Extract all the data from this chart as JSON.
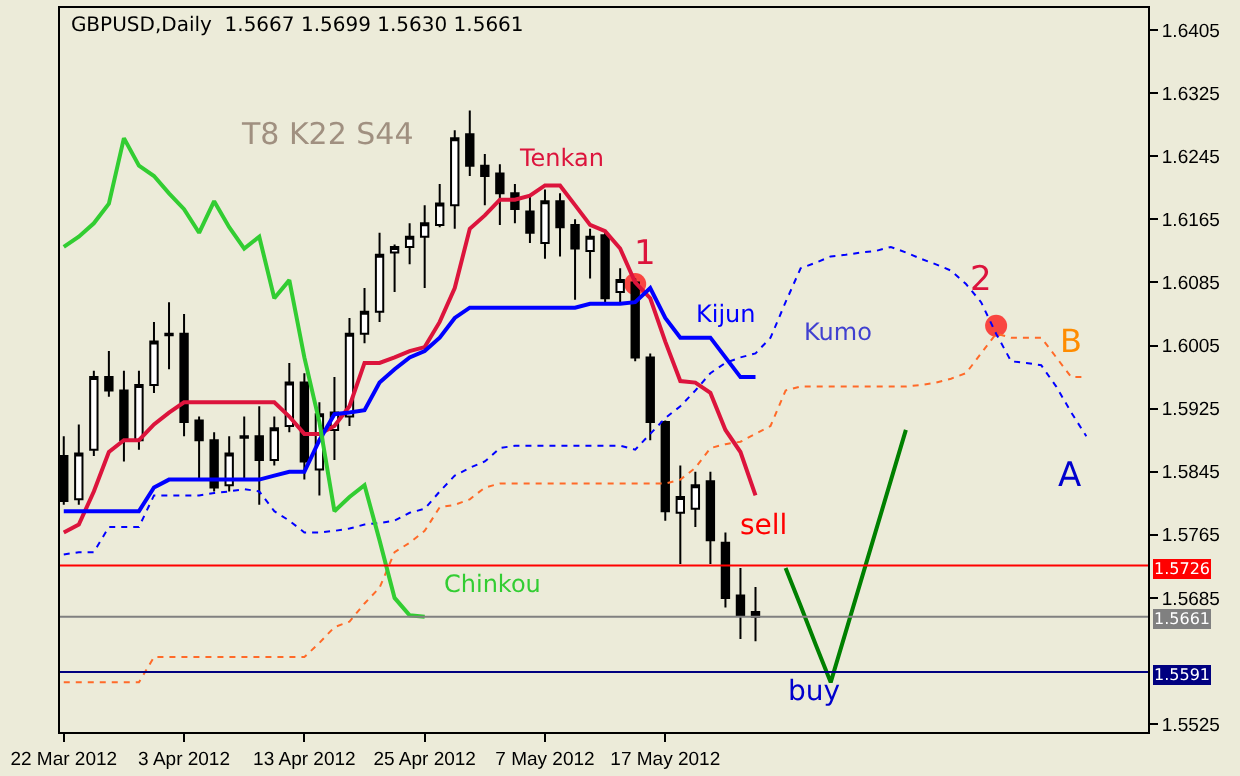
{
  "chart_data": {
    "type": "candlestick",
    "title": "GBPUSD,Daily  1.5667 1.5699 1.5630 1.5661",
    "categories": [
      "22 Mar 2012",
      null,
      null,
      null,
      null,
      null,
      null,
      null,
      "3 Apr 2012",
      null,
      null,
      null,
      null,
      null,
      null,
      null,
      "13 Apr 2012",
      null,
      null,
      null,
      null,
      null,
      null,
      null,
      "25 Apr 2012",
      null,
      null,
      null,
      null,
      null,
      null,
      null,
      "7 May 2012",
      null,
      null,
      null,
      null,
      null,
      null,
      null,
      "17 May 2012",
      null,
      null,
      null,
      null,
      null,
      null,
      null,
      null,
      null,
      null,
      null,
      null,
      null,
      null,
      null,
      null,
      null,
      null,
      null,
      null,
      null,
      null,
      null,
      null,
      null,
      null,
      null,
      null
    ],
    "ohlc": [
      [
        1.5865,
        1.589,
        1.5803,
        1.5808
      ],
      [
        1.581,
        1.5905,
        1.5803,
        1.5868
      ],
      [
        1.5873,
        1.5973,
        1.5865,
        1.5965
      ],
      [
        1.5965,
        1.5998,
        1.594,
        1.5948
      ],
      [
        1.5948,
        1.5973,
        1.5858,
        1.5885
      ],
      [
        1.5885,
        1.5973,
        1.5873,
        1.5955
      ],
      [
        1.5955,
        1.6035,
        1.5945,
        1.601
      ],
      [
        1.6018,
        1.606,
        1.5975,
        1.602
      ],
      [
        1.602,
        1.6045,
        1.589,
        1.5908
      ],
      [
        1.591,
        1.5915,
        1.5835,
        1.5885
      ],
      [
        1.5885,
        1.5895,
        1.582,
        1.5825
      ],
      [
        1.5828,
        1.589,
        1.582,
        1.5868
      ],
      [
        1.5888,
        1.5915,
        1.5835,
        1.589
      ],
      [
        1.589,
        1.5928,
        1.5803,
        1.586
      ],
      [
        1.586,
        1.5915,
        1.5853,
        1.59
      ],
      [
        1.5903,
        1.5983,
        1.5895,
        1.5958
      ],
      [
        1.5958,
        1.597,
        1.5835,
        1.5858
      ],
      [
        1.5848,
        1.5933,
        1.5815,
        1.5918
      ],
      [
        1.5898,
        1.5965,
        1.586,
        1.592
      ],
      [
        1.5915,
        1.604,
        1.5903,
        1.602
      ],
      [
        1.602,
        1.6078,
        1.6008,
        1.6048
      ],
      [
        1.6048,
        1.6148,
        1.6035,
        1.612
      ],
      [
        1.6123,
        1.6133,
        1.6073,
        1.613
      ],
      [
        1.613,
        1.616,
        1.6108,
        1.6143
      ],
      [
        1.6143,
        1.6183,
        1.6078,
        1.616
      ],
      [
        1.6158,
        1.621,
        1.6155,
        1.6185
      ],
      [
        1.6183,
        1.6278,
        1.6153,
        1.6268
      ],
      [
        1.6273,
        1.6303,
        1.622,
        1.6233
      ],
      [
        1.6233,
        1.6248,
        1.6183,
        1.622
      ],
      [
        1.6223,
        1.6235,
        1.6158,
        1.6198
      ],
      [
        1.6198,
        1.621,
        1.616,
        1.6178
      ],
      [
        1.6175,
        1.6195,
        1.6135,
        1.6148
      ],
      [
        1.6135,
        1.6203,
        1.6115,
        1.6188
      ],
      [
        1.6188,
        1.6198,
        1.6118,
        1.6155
      ],
      [
        1.6158,
        1.6165,
        1.6063,
        1.6128
      ],
      [
        1.6125,
        1.6153,
        1.609,
        1.6143
      ],
      [
        1.6145,
        1.6148,
        1.606,
        1.6065
      ],
      [
        1.6073,
        1.6103,
        1.606,
        1.6088
      ],
      [
        1.6085,
        1.609,
        1.5985,
        1.599
      ],
      [
        1.599,
        1.5995,
        1.5885,
        1.5908
      ],
      [
        1.5908,
        1.591,
        1.5783,
        1.5795
      ],
      [
        1.5793,
        1.5853,
        1.5728,
        1.5813
      ],
      [
        1.5798,
        1.5845,
        1.5775,
        1.5828
      ],
      [
        1.5833,
        1.5845,
        1.5728,
        1.5758
      ],
      [
        1.5755,
        1.5768,
        1.5673,
        1.5685
      ],
      [
        1.5688,
        1.5723,
        1.5633,
        1.5663
      ],
      [
        1.5667,
        1.5699,
        1.563,
        1.5661
      ],
      null,
      null,
      null,
      null,
      null,
      null,
      null,
      null,
      null,
      null,
      null,
      null,
      null,
      null,
      null,
      null,
      null,
      null,
      null,
      null,
      null,
      null
    ],
    "series": [
      {
        "name": "Tenkan",
        "type": "line",
        "color": "#dc143c",
        "values": [
          1.5768,
          1.5778,
          1.582,
          1.587,
          1.5885,
          1.5885,
          1.5905,
          1.592,
          1.5933,
          1.5933,
          1.5933,
          1.5933,
          1.5933,
          1.5933,
          1.5933,
          1.5915,
          1.5893,
          1.5893,
          1.5903,
          1.5928,
          1.5983,
          1.5983,
          1.599,
          1.5998,
          1.6003,
          1.6035,
          1.6078,
          1.6153,
          1.617,
          1.619,
          1.619,
          1.6195,
          1.6208,
          1.6208,
          1.6183,
          1.6158,
          1.615,
          1.6128,
          1.6085,
          1.6065,
          1.601,
          1.596,
          1.5958,
          1.5945,
          1.5898,
          1.587,
          1.5815,
          null,
          null,
          null,
          null,
          null,
          null,
          null,
          null,
          null,
          null,
          null,
          null,
          null,
          null,
          null,
          null,
          null,
          null,
          null,
          null,
          null,
          null
        ]
      },
      {
        "name": "Kijun",
        "type": "line",
        "color": "#0000ff",
        "values": [
          1.5795,
          1.5795,
          1.5795,
          1.5795,
          1.5795,
          1.5795,
          1.5825,
          1.5835,
          1.5835,
          1.5835,
          1.5835,
          1.5835,
          1.5835,
          1.5835,
          1.584,
          1.5845,
          1.5845,
          1.5885,
          1.5918,
          1.592,
          1.5923,
          1.5958,
          1.5975,
          1.599,
          1.5998,
          1.6015,
          1.604,
          1.6053,
          1.6053,
          1.6053,
          1.6053,
          1.6053,
          1.6053,
          1.6053,
          1.6053,
          1.6058,
          1.6058,
          1.6058,
          1.606,
          1.6078,
          1.604,
          1.6015,
          1.6015,
          1.6015,
          1.599,
          1.5965,
          1.5965,
          null,
          null,
          null,
          null,
          null,
          null,
          null,
          null,
          null,
          null,
          null,
          null,
          null,
          null,
          null,
          null,
          null,
          null,
          null,
          null,
          null,
          null
        ]
      },
      {
        "name": "Chinkou",
        "type": "line",
        "color": "#32cd32",
        "values": [
          1.613,
          1.6143,
          1.616,
          1.6185,
          1.6268,
          1.6233,
          1.622,
          1.6198,
          1.6178,
          1.6148,
          1.6188,
          1.6155,
          1.6128,
          1.6143,
          1.6065,
          1.6088,
          1.599,
          1.5908,
          1.5795,
          1.5813,
          1.5828,
          1.5758,
          1.5685,
          1.5663,
          1.5661,
          null,
          null,
          null,
          null,
          null,
          null,
          null,
          null,
          null,
          null,
          null,
          null,
          null,
          null,
          null,
          null,
          null,
          null,
          null,
          null,
          null,
          null,
          null,
          null,
          null,
          null,
          null,
          null,
          null,
          null,
          null,
          null,
          null,
          null,
          null,
          null,
          null,
          null,
          null,
          null,
          null,
          null,
          null,
          null
        ]
      },
      {
        "type": "line",
        "color": "#0000ff",
        "line_style": "dotted",
        "values": [
          1.574,
          1.5743,
          1.5743,
          1.5775,
          1.5775,
          1.5775,
          1.5815,
          1.5815,
          1.5815,
          1.5815,
          1.5818,
          1.582,
          1.5823,
          1.582,
          1.5795,
          1.5783,
          1.5768,
          1.5768,
          1.577,
          1.5773,
          1.5778,
          1.578,
          1.5783,
          1.5793,
          1.5798,
          1.582,
          1.584,
          1.585,
          1.5858,
          1.5875,
          1.5878,
          1.5878,
          1.5878,
          1.5878,
          1.5878,
          1.5878,
          1.5878,
          1.5878,
          1.5873,
          1.5893,
          1.5913,
          1.5928,
          1.5948,
          1.597,
          1.5983,
          1.599,
          1.5995,
          1.6015,
          1.606,
          1.6103,
          1.611,
          1.6118,
          1.612,
          1.6123,
          1.6125,
          1.613,
          1.6123,
          1.6115,
          1.6108,
          1.61,
          1.6083,
          1.606,
          1.602,
          1.5985,
          1.5983,
          1.598,
          1.5953,
          1.592,
          1.589
        ]
      },
      {
        "type": "line",
        "color": "#ff6a28",
        "line_style": "dotted",
        "values": [
          1.5578,
          1.5578,
          1.5578,
          1.5578,
          1.5578,
          1.5578,
          1.561,
          1.561,
          1.561,
          1.561,
          1.561,
          1.561,
          1.561,
          1.561,
          1.561,
          1.561,
          1.561,
          1.5628,
          1.5648,
          1.5655,
          1.5678,
          1.5698,
          1.5743,
          1.5755,
          1.577,
          1.58,
          1.5803,
          1.581,
          1.5825,
          1.583,
          1.583,
          1.583,
          1.583,
          1.583,
          1.583,
          1.583,
          1.583,
          1.583,
          1.583,
          1.583,
          1.583,
          1.5835,
          1.585,
          1.5875,
          1.588,
          1.5883,
          1.5893,
          1.5903,
          1.5948,
          1.5953,
          1.5953,
          1.5953,
          1.5953,
          1.5953,
          1.5953,
          1.5953,
          1.5953,
          1.5955,
          1.5958,
          1.5963,
          1.597,
          1.5995,
          1.602,
          1.6015,
          1.6015,
          1.6015,
          1.599,
          1.5965,
          1.5965
        ]
      },
      {
        "type": "scatter",
        "color": "#ff0000",
        "marker": "circle",
        "values": [
          null,
          null,
          null,
          null,
          null,
          null,
          null,
          null,
          null,
          null,
          null,
          null,
          null,
          null,
          null,
          null,
          null,
          null,
          null,
          null,
          null,
          null,
          null,
          null,
          null,
          null,
          null,
          null,
          null,
          null,
          null,
          null,
          null,
          null,
          null,
          null,
          null,
          null,
          1.6083,
          null,
          null,
          null,
          null,
          null,
          null,
          null,
          null,
          null,
          null,
          null,
          null,
          null,
          null,
          null,
          null,
          null,
          null,
          null,
          null,
          null,
          null,
          null,
          1.603,
          null,
          null,
          null,
          null,
          null,
          null
        ]
      },
      {
        "type": "line",
        "color": "#008000",
        "values": [
          null,
          null,
          null,
          null,
          null,
          null,
          null,
          null,
          null,
          null,
          null,
          null,
          null,
          null,
          null,
          null,
          null,
          null,
          null,
          null,
          null,
          null,
          null,
          null,
          null,
          null,
          null,
          null,
          null,
          null,
          null,
          null,
          null,
          null,
          null,
          null,
          null,
          null,
          null,
          null,
          null,
          null,
          null,
          null,
          null,
          null,
          null,
          null,
          1.5723,
          1.5675,
          1.5626,
          1.5578,
          1.5642,
          1.5706,
          1.577,
          1.5834,
          1.5898,
          null,
          null,
          null,
          null,
          null,
          null,
          null,
          null,
          null,
          null,
          null,
          null
        ]
      }
    ],
    "ref_lines": [
      {
        "axis": "y",
        "value": 1.5726,
        "label": "1.5726",
        "color": "#ff0000"
      },
      {
        "axis": "y",
        "value": 1.5661,
        "label": "1.5661",
        "color": "#808080"
      },
      {
        "axis": "y",
        "value": 1.5591,
        "label": "1.5591",
        "color": "#000080"
      }
    ],
    "annotations": [
      "T8 K22 S44",
      "1",
      "2",
      "B",
      "A",
      "sell",
      "buy",
      "Kumo"
    ],
    "ylim": [
      1.5515,
      1.6433
    ],
    "yticks": [
      1.5525,
      1.5685,
      1.5765,
      1.5845,
      1.5925,
      1.6005,
      1.6085,
      1.6165,
      1.6245,
      1.6325,
      1.6405
    ]
  }
}
